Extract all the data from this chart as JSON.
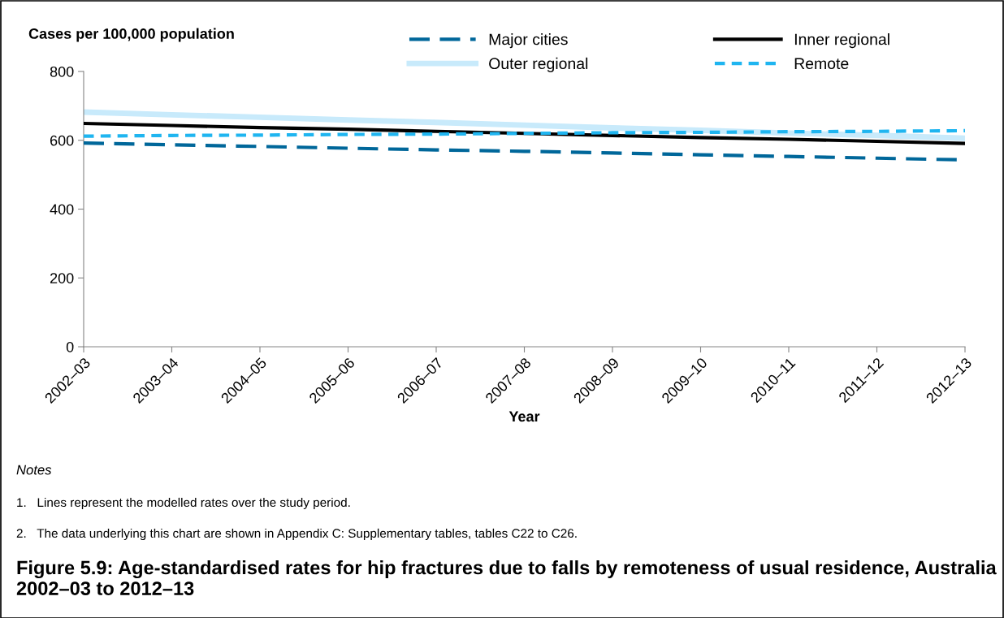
{
  "chart_data": {
    "type": "line",
    "title": "Figure 5.9: Age-standardised rates for hip fractures due to falls by remoteness of usual residence, Australia 2002–03 to 2012–13",
    "xlabel": "Year",
    "ylabel": "Cases per 100,000 population",
    "categories": [
      "2002–03",
      "2003–04",
      "2004–05",
      "2005–06",
      "2006–07",
      "2007–08",
      "2008–09",
      "2009–10",
      "2010–11",
      "2011–12",
      "2012–13"
    ],
    "series": [
      {
        "name": "Major cities",
        "color": "#00679a",
        "line_style": "dashed",
        "values": [
          592,
          587,
          582,
          577,
          572,
          568,
          563,
          558,
          553,
          548,
          543
        ]
      },
      {
        "name": "Inner regional",
        "color": "#000000",
        "line_style": "solid",
        "values": [
          649,
          643,
          637,
          632,
          626,
          620,
          614,
          608,
          603,
          597,
          591
        ]
      },
      {
        "name": "Outer regional",
        "color": "#c8eafb",
        "line_style": "solid",
        "values": [
          682,
          674,
          667,
          659,
          652,
          644,
          636,
          629,
          621,
          614,
          606
        ]
      },
      {
        "name": "Remote",
        "color": "#1fb5f0",
        "line_style": "dotted",
        "values": [
          612,
          614,
          615,
          617,
          618,
          620,
          622,
          623,
          625,
          626,
          628
        ]
      }
    ],
    "ylim": [
      0,
      800
    ],
    "yticks": [
      0,
      200,
      400,
      600,
      800
    ],
    "grid": false,
    "legend": "top",
    "marker": "none",
    "annotations": [
      "Notes",
      "1.   Lines represent the modelled rates over the study period.",
      "2.   The data underlying this chart are shown in Appendix C: Supplementary tables, tables C22 to C26."
    ]
  }
}
